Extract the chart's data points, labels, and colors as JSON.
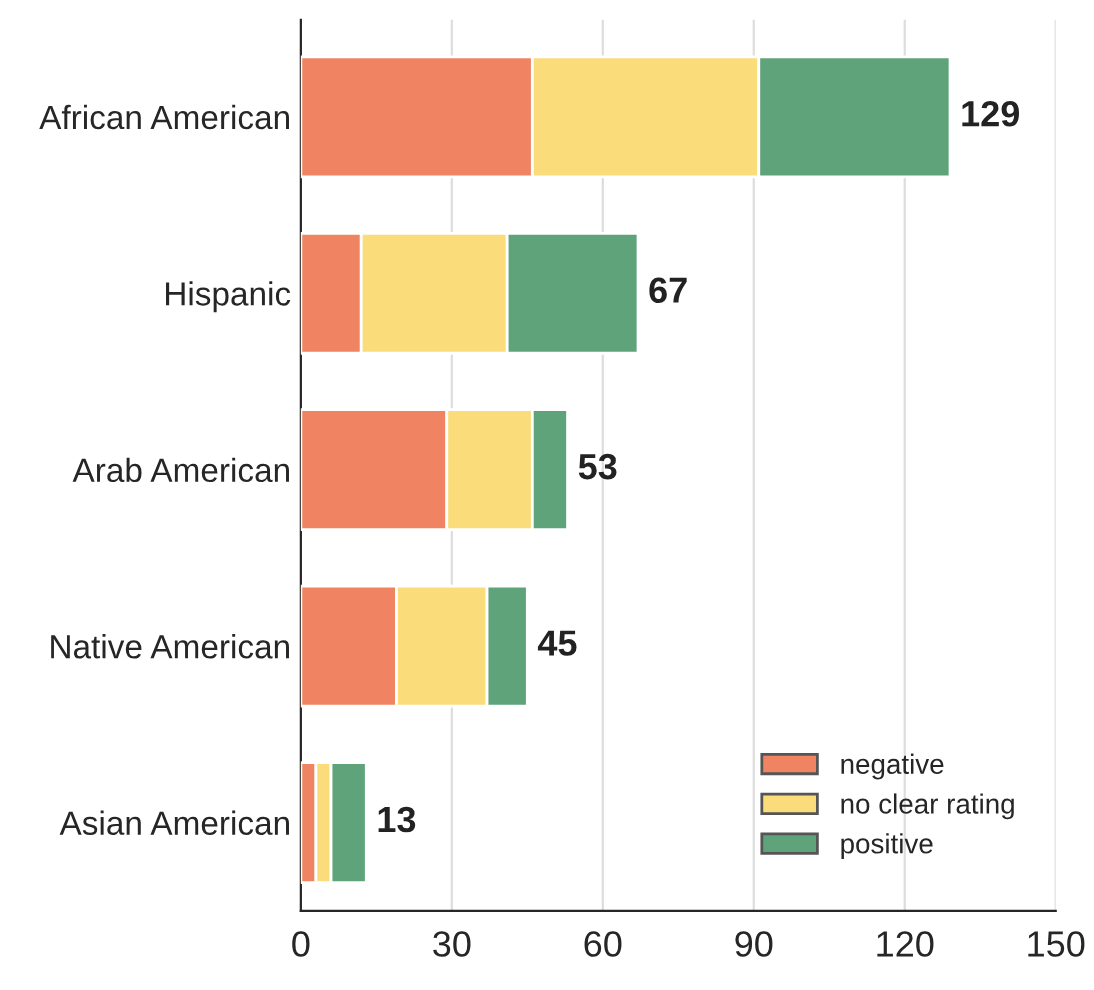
{
  "chart_data": {
    "type": "bar",
    "orientation": "horizontal",
    "stacked": true,
    "categories": [
      "African American",
      "Hispanic",
      "Arab American",
      "Native American",
      "Asian American"
    ],
    "series": [
      {
        "name": "negative",
        "color": "#f08462",
        "values": [
          46,
          12,
          29,
          19,
          3
        ]
      },
      {
        "name": "no clear rating",
        "color": "#fbdc7a",
        "values": [
          45,
          29,
          17,
          18,
          3
        ]
      },
      {
        "name": "positive",
        "color": "#5fa37a",
        "values": [
          38,
          26,
          7,
          8,
          7
        ]
      }
    ],
    "totals": [
      "129",
      "67",
      "53",
      "45",
      "13"
    ],
    "xlim": [
      0,
      150
    ],
    "xticks": [
      0,
      30,
      60,
      90,
      120,
      150
    ],
    "grid": "x",
    "legend": "bottom right"
  }
}
